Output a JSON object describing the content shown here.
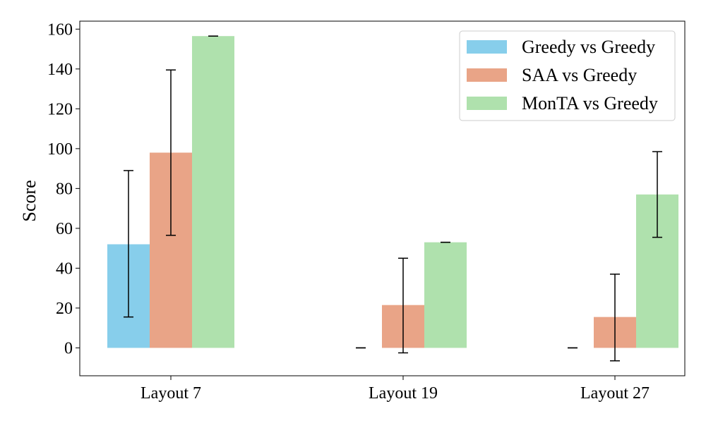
{
  "chart_data": {
    "type": "bar",
    "title": "",
    "xlabel": "",
    "ylabel": "Score",
    "ylim": [
      -14,
      164
    ],
    "yticks": [
      0,
      20,
      40,
      60,
      80,
      100,
      120,
      140,
      160
    ],
    "categories": [
      "Layout 7",
      "Layout 19",
      "Layout 27"
    ],
    "series": [
      {
        "name": "Greedy vs Greedy",
        "color": "#87CEEB",
        "values": [
          52,
          0,
          0
        ],
        "errors": [
          [
            15.5,
            89
          ],
          [
            0,
            0
          ],
          [
            0,
            0
          ]
        ]
      },
      {
        "name": "SAA vs Greedy",
        "color": "#E9A487",
        "values": [
          98,
          21.5,
          15.5
        ],
        "errors": [
          [
            56.5,
            139.5
          ],
          [
            -2.5,
            45
          ],
          [
            -6.5,
            37
          ]
        ]
      },
      {
        "name": "MonTA vs Greedy",
        "color": "#AFE1AD",
        "values": [
          156.5,
          53,
          77
        ],
        "errors": [
          [
            156.5,
            156.5
          ],
          [
            53,
            53
          ],
          [
            55.5,
            98.5
          ]
        ]
      }
    ],
    "legend_position": "top-right",
    "grid": false
  }
}
